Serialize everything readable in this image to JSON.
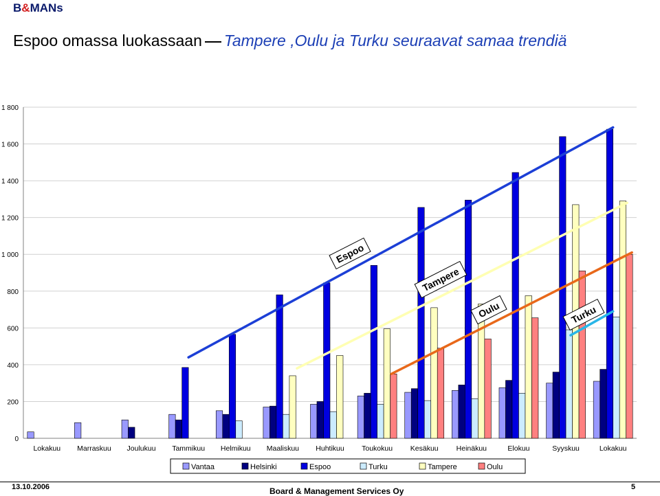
{
  "header": {
    "logo_prefix": "B",
    "logo_amp": "&",
    "logo_suffix": "MANs",
    "title_main": "Espoo omassa luokassaan",
    "title_sub": "Tampere ,Oulu ja Turku seuraavat samaa trendiä"
  },
  "footer": {
    "date": "13.10.2006",
    "company": "Board & Management Services Oy",
    "page": "5"
  },
  "chart_data": {
    "type": "bar",
    "categories": [
      "Lokakuu",
      "Marraskuu",
      "Joulukuu",
      "Tammikuu",
      "Helmikuu",
      "Maaliskuu",
      "Huhtikuu",
      "Toukokuu",
      "Kesäkuu",
      "Heinäkuu",
      "Elokuu",
      "Syyskuu",
      "Lokakuu"
    ],
    "y_ticks": [
      "0",
      "200",
      "400",
      "600",
      "800",
      "1 000",
      "1 200",
      "1 400",
      "1 600",
      "1 800"
    ],
    "ylim": [
      0,
      1800
    ],
    "legend_position": "bottom",
    "series": [
      {
        "name": "Vantaa",
        "color": "#9999ff",
        "values": [
          35,
          85,
          100,
          130,
          150,
          170,
          185,
          230,
          250,
          260,
          275,
          300,
          310
        ]
      },
      {
        "name": "Helsinki",
        "color": "#000080",
        "values": [
          null,
          null,
          60,
          100,
          130,
          175,
          200,
          245,
          270,
          290,
          315,
          360,
          375
        ]
      },
      {
        "name": "Espoo",
        "color": "#0000e0",
        "values": [
          null,
          null,
          null,
          385,
          565,
          780,
          845,
          940,
          1255,
          1295,
          1445,
          1640,
          1680
        ]
      },
      {
        "name": "Turku",
        "color": "#ccecff",
        "values": [
          null,
          null,
          null,
          null,
          95,
          130,
          145,
          185,
          205,
          215,
          245,
          590,
          660
        ]
      },
      {
        "name": "Tampere",
        "color": "#ffffc0",
        "values": [
          null,
          null,
          null,
          null,
          null,
          340,
          450,
          595,
          710,
          730,
          775,
          1270,
          1290
        ]
      },
      {
        "name": "Oulu",
        "color": "#ff8080",
        "values": [
          null,
          null,
          null,
          null,
          null,
          null,
          null,
          350,
          490,
          540,
          655,
          910,
          1000
        ]
      }
    ],
    "annotations": [
      {
        "text": "Espoo",
        "color": "#1c3fd6",
        "line": [
          [
            3,
            440
          ],
          [
            12,
            1690
          ]
        ]
      },
      {
        "text": "Tampere",
        "color": "#ffffb3",
        "line": [
          [
            5.3,
            380
          ],
          [
            12.3,
            1280
          ]
        ]
      },
      {
        "text": "Oulu",
        "color": "#e8681a",
        "line": [
          [
            7.3,
            350
          ],
          [
            12.4,
            1010
          ]
        ]
      },
      {
        "text": "Turku",
        "color": "#29b6e8",
        "line": [
          [
            11.1,
            560
          ],
          [
            12.0,
            690
          ]
        ]
      }
    ]
  }
}
